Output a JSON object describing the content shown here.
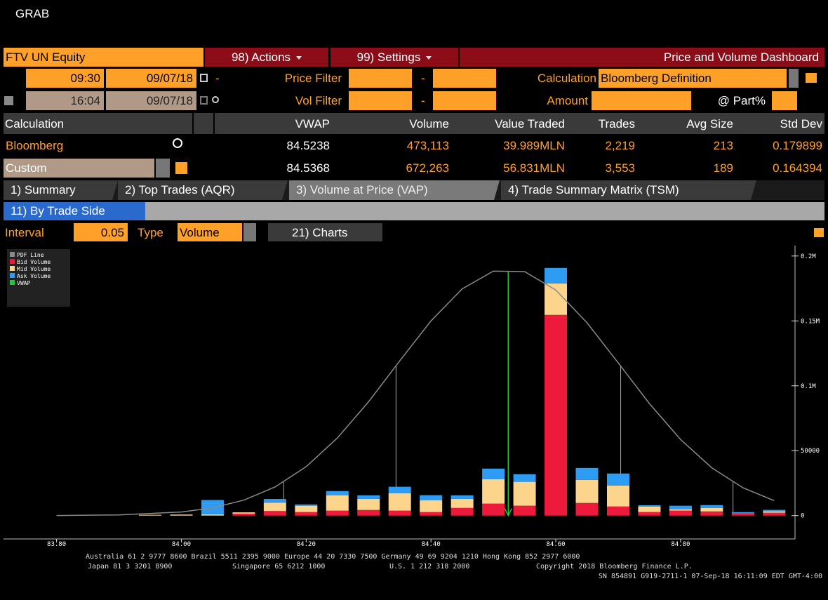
{
  "window": {
    "title": "GRAB"
  },
  "toolbar": {
    "security": "FTV UN Equity",
    "actions": "98) Actions",
    "settings": "99) Settings",
    "dashboard": "Price and Volume Dashboard"
  },
  "filters": {
    "start_time": "09:30",
    "start_date": "09/07/18",
    "end_time": "16:04",
    "end_date": "09/07/18",
    "dash": "-",
    "price_filter": "Price Filter",
    "vol_filter": "Vol Filter",
    "calculation_label": "Calculation",
    "calculation_value": "Bloomberg Definition",
    "amount": "Amount",
    "part": "@ Part%"
  },
  "table": {
    "columns": [
      "Calculation",
      "VWAP",
      "Volume",
      "Value Traded",
      "Trades",
      "Avg Size",
      "Std Dev"
    ],
    "rows": [
      [
        "Bloomberg",
        "84.5238",
        "473,113",
        "39.989MLN",
        "2,219",
        "213",
        "0.179899"
      ],
      [
        "Custom",
        "84.5368",
        "672,263",
        "56.831MLN",
        "3,553",
        "189",
        "0.164394"
      ]
    ]
  },
  "tabs": [
    "1) Summary",
    "2) Top Trades (AQR)",
    "3) Volume at Price (VAP)",
    "4) Trade Summary Matrix (TSM)"
  ],
  "subtab": "11) By Trade Side",
  "controls": {
    "interval_label": "Interval",
    "interval": "0.05",
    "type_label": "Type",
    "type": "Volume",
    "charts": "21) Charts"
  },
  "footer": {
    "line1": "Australia 61 2 9777 8600 Brazil 5511 2395 9000 Europe 44 20 7330 7500 Germany 49 69 9204 1210 Hong Kong 852 2977 6000",
    "line2": [
      "Japan 81 3 3201 8900",
      "Singapore 65 6212 1000",
      "U.S. 1 212 318 2000",
      "Copyright 2018 Bloomberg Finance L.P."
    ],
    "line3": "SN 854891 G919-2711-1 07-Sep-18 16:11:09 EDT  GMT-4:00"
  },
  "chart_data": {
    "type": "bar",
    "stacked": true,
    "x": [
      83.95,
      84.0,
      84.05,
      84.1,
      84.15,
      84.2,
      84.25,
      84.3,
      84.35,
      84.4,
      84.45,
      84.5,
      84.55,
      84.6,
      84.65,
      84.7,
      84.75,
      84.8,
      84.85,
      84.9,
      84.95
    ],
    "series": [
      {
        "name": "Bid Volume",
        "color": "#ee1a3c",
        "values": [
          0,
          0,
          0,
          1500,
          3500,
          2700,
          3800,
          4300,
          3800,
          2700,
          5900,
          9200,
          7600,
          154600,
          9700,
          7000,
          2700,
          3800,
          3200,
          1600,
          2200
        ]
      },
      {
        "name": "Mid Volume",
        "color": "#fcd48c",
        "values": [
          600,
          800,
          1000,
          1000,
          6500,
          4900,
          11900,
          8600,
          13500,
          9200,
          7000,
          18900,
          18400,
          24300,
          17800,
          16200,
          4300,
          1100,
          2700,
          0,
          1100
        ]
      },
      {
        "name": "Ask Volume",
        "color": "#2e9cf2",
        "values": [
          0,
          0,
          11000,
          0,
          2800,
          1000,
          3200,
          2700,
          4900,
          3800,
          2700,
          8100,
          5900,
          11900,
          9200,
          9200,
          1000,
          2700,
          2200,
          1100,
          1100
        ]
      }
    ],
    "pdf": {
      "name": "PDF Line",
      "color": "#8a8a8a",
      "x": [
        83.8,
        83.9,
        84.0,
        84.05,
        84.1,
        84.15,
        84.2,
        84.25,
        84.3,
        84.35,
        84.4,
        84.45,
        84.5,
        84.55,
        84.6,
        84.65,
        84.7,
        84.75,
        84.8,
        84.85,
        84.9,
        84.95
      ],
      "values": [
        59,
        470,
        2750,
        5950,
        11900,
        22000,
        37700,
        59800,
        87700,
        119200,
        150000,
        174700,
        188300,
        188000,
        173700,
        148600,
        117700,
        86300,
        58600,
        36800,
        21400,
        11500
      ]
    },
    "vwap": {
      "name": "VWAP",
      "color": "#22c83a",
      "value": 84.5238
    },
    "marker_lines": [
      84.164,
      84.344,
      84.704,
      84.884
    ],
    "xlim": [
      83.715,
      84.98
    ],
    "xticks": [
      {
        "value": 83.8,
        "label": "83.80"
      },
      {
        "value": 84.0,
        "label": "84.00"
      },
      {
        "value": 84.2,
        "label": "84.20"
      },
      {
        "value": 84.4,
        "label": "84.40"
      },
      {
        "value": 84.6,
        "label": "84.60"
      },
      {
        "value": 84.8,
        "label": "84.80"
      }
    ],
    "ylim": [
      -18000,
      208000
    ],
    "yticks": [
      0,
      50000,
      {
        "value": 100000,
        "label": "0.1M"
      },
      {
        "value": 150000,
        "label": "0.15M"
      },
      {
        "value": 200000,
        "label": "0.2M"
      }
    ]
  }
}
